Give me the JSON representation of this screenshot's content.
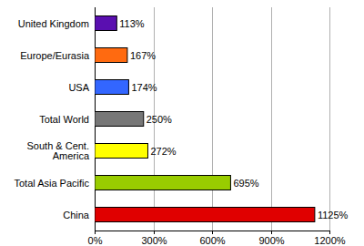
{
  "chart_data": {
    "type": "bar",
    "orientation": "horizontal",
    "categories": [
      "United Kingdom",
      "Europe/Eurasia",
      "USA",
      "Total World",
      "South & Cent. America",
      "Total Asia Pacific",
      "China"
    ],
    "values": [
      113,
      167,
      174,
      250,
      272,
      695,
      1125
    ],
    "value_labels": [
      "113%",
      "167%",
      "174%",
      "250%",
      "272%",
      "695%",
      "1125%"
    ],
    "colors": [
      "#5a0fb0",
      "#ff6a10",
      "#3366ff",
      "#777777",
      "#ffff00",
      "#99cc00",
      "#e00000"
    ],
    "xlim": [
      0,
      1200
    ],
    "xticks": [
      {
        "value": 0,
        "label": "0%"
      },
      {
        "value": 300,
        "label": "300%"
      },
      {
        "value": 600,
        "label": "600%"
      },
      {
        "value": 900,
        "label": "900%"
      },
      {
        "value": 1200,
        "label": "1200%"
      }
    ],
    "grid": true,
    "data_labels": true
  }
}
